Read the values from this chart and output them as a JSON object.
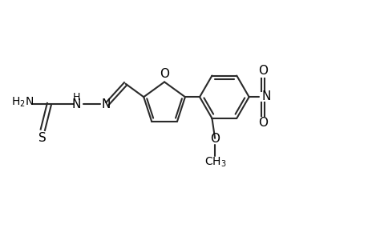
{
  "background_color": "#ffffff",
  "line_color": "#2a2a2a",
  "line_width": 1.5,
  "fig_width": 4.6,
  "fig_height": 3.0,
  "dpi": 100,
  "xlim": [
    0,
    10
  ],
  "ylim": [
    0,
    6.5
  ]
}
